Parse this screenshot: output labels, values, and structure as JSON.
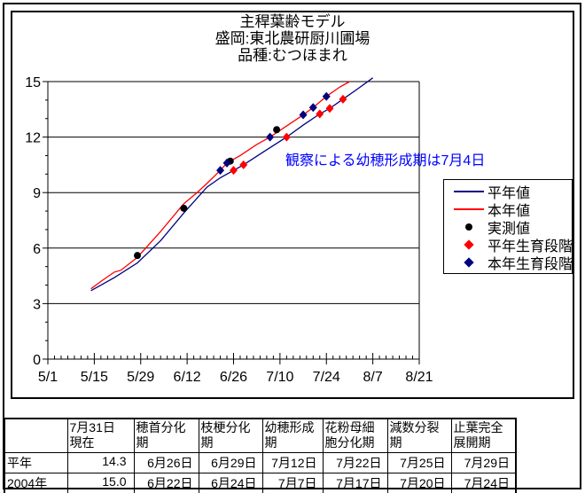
{
  "page": {
    "background": "#FFFFFF",
    "border_color": "#000000"
  },
  "chart": {
    "title_lines": [
      "主稈葉齢モデル",
      "盛岡:東北農研厨川圃場",
      "品種:むつほまれ"
    ],
    "annotation": {
      "text": "観察による幼穂形成期は7月4日",
      "color": "#0000FF"
    }
  },
  "legend": {
    "items": [
      {
        "label": "平年値",
        "kind": "line",
        "color": "#000080"
      },
      {
        "label": "本年値",
        "kind": "line",
        "color": "#FF0000"
      },
      {
        "label": "実測値",
        "kind": "dot",
        "color": "#000000"
      },
      {
        "label": "平年生育段階",
        "kind": "diamond",
        "color": "#FF0000"
      },
      {
        "label": "本年生育段階",
        "kind": "diamond",
        "color": "#000080"
      }
    ]
  },
  "chart_data": {
    "type": "line",
    "title": "主稈葉齢モデル",
    "subtitle_lines": [
      "盛岡:東北農研厨川圃場",
      "品種:むつほまれ"
    ],
    "xlabel": "",
    "ylabel": "",
    "ylim": [
      0,
      15
    ],
    "yticks": [
      0,
      3,
      6,
      9,
      12,
      15
    ],
    "y_minor_step": 1,
    "xticks": [
      "5/1",
      "5/15",
      "5/29",
      "6/12",
      "6/26",
      "7/10",
      "7/24",
      "8/7",
      "8/21"
    ],
    "x_minor_step_days": 2,
    "x_range_days": 112,
    "grid": "horizontal",
    "legend_position": "right",
    "annotation": {
      "text": "観察による幼穂形成期は7月4日",
      "near_x": "7/4",
      "color": "#0000FF"
    },
    "series": [
      {
        "name": "平年値",
        "type": "line",
        "color": "#000080",
        "points": [
          [
            "5/14",
            3.7
          ],
          [
            "5/17",
            4.0
          ],
          [
            "5/21",
            4.4
          ],
          [
            "5/28",
            5.2
          ],
          [
            "6/4",
            6.4
          ],
          [
            "6/11",
            7.9
          ],
          [
            "6/18",
            9.3
          ],
          [
            "6/22",
            9.8
          ],
          [
            "6/26",
            10.2
          ],
          [
            "6/29",
            10.5
          ],
          [
            "7/5",
            11.2
          ],
          [
            "7/12",
            12.0
          ],
          [
            "7/17",
            12.65
          ],
          [
            "7/22",
            13.25
          ],
          [
            "7/25",
            13.55
          ],
          [
            "7/29",
            14.05
          ],
          [
            "8/2",
            14.55
          ],
          [
            "8/7",
            15.2
          ]
        ]
      },
      {
        "name": "本年値",
        "type": "line",
        "color": "#FF0000",
        "points": [
          [
            "5/14",
            3.8
          ],
          [
            "5/17",
            4.2
          ],
          [
            "5/21",
            4.7
          ],
          [
            "5/23",
            4.8
          ],
          [
            "5/28",
            5.5
          ],
          [
            "6/4",
            6.9
          ],
          [
            "6/11",
            8.4
          ],
          [
            "6/15",
            9.0
          ],
          [
            "6/18",
            9.5
          ],
          [
            "6/22",
            10.2
          ],
          [
            "6/24",
            10.6
          ],
          [
            "6/28",
            11.0
          ],
          [
            "7/3",
            11.6
          ],
          [
            "7/7",
            12.0
          ],
          [
            "7/12",
            12.6
          ],
          [
            "7/17",
            13.2
          ],
          [
            "7/20",
            13.6
          ],
          [
            "7/24",
            14.2
          ],
          [
            "7/28",
            14.7
          ],
          [
            "7/31",
            15.0
          ]
        ]
      },
      {
        "name": "実測値",
        "type": "scatter",
        "marker": "circle",
        "color": "#000000",
        "points": [
          [
            "5/28",
            5.6
          ],
          [
            "6/11",
            8.15
          ],
          [
            "6/25",
            10.7
          ],
          [
            "7/9",
            12.4
          ]
        ]
      },
      {
        "name": "平年生育段階",
        "type": "scatter",
        "marker": "diamond",
        "color": "#FF0000",
        "points": [
          [
            "6/26",
            10.2
          ],
          [
            "6/29",
            10.5
          ],
          [
            "7/12",
            12.0
          ],
          [
            "7/22",
            13.25
          ],
          [
            "7/25",
            13.55
          ],
          [
            "7/29",
            14.05
          ]
        ]
      },
      {
        "name": "本年生育段階",
        "type": "scatter",
        "marker": "diamond",
        "color": "#000080",
        "points": [
          [
            "6/22",
            10.2
          ],
          [
            "6/24",
            10.6
          ],
          [
            "7/7",
            12.0
          ],
          [
            "7/17",
            13.2
          ],
          [
            "7/20",
            13.6
          ],
          [
            "7/24",
            14.2
          ]
        ]
      }
    ]
  },
  "table": {
    "headers": [
      "",
      "7月31日\n現在",
      "穂首分化\n期",
      "枝梗分化\n期",
      "幼穂形成\n期",
      "花粉母細\n胞分化期",
      "減数分裂\n期",
      "止葉完全\n展開期"
    ],
    "rows": [
      {
        "label": "平年",
        "values": [
          "14.3",
          "6月26日",
          "6月29日",
          "7月12日",
          "7月22日",
          "7月25日",
          "7月29日"
        ]
      },
      {
        "label": "2004年",
        "values": [
          "15.0",
          "6月22日",
          "6月24日",
          "7月7日",
          "7月17日",
          "7月20日",
          "7月24日"
        ]
      }
    ]
  }
}
